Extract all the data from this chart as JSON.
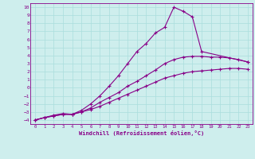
{
  "title": "",
  "xlabel": "Windchill (Refroidissement éolien,°C)",
  "bg_color": "#ceeeed",
  "line_color": "#880088",
  "grid_color": "#aadddd",
  "xlim": [
    -0.5,
    23.5
  ],
  "ylim": [
    -4.5,
    10.5
  ],
  "xticks": [
    0,
    1,
    2,
    3,
    4,
    5,
    6,
    7,
    8,
    9,
    10,
    11,
    12,
    13,
    14,
    15,
    16,
    17,
    18,
    19,
    20,
    21,
    22,
    23
  ],
  "yticks": [
    -4,
    -3,
    -2,
    -1,
    0,
    1,
    2,
    3,
    4,
    5,
    6,
    7,
    8,
    9,
    10
  ],
  "line1_x": [
    0,
    1,
    2,
    3,
    4,
    5,
    6,
    7,
    8,
    9,
    10,
    11,
    12,
    13,
    14,
    15,
    16,
    17,
    18,
    19,
    20,
    21,
    22,
    23
  ],
  "line1_y": [
    -4,
    -3.7,
    -3.5,
    -3.3,
    -3.3,
    -3.0,
    -2.7,
    -2.3,
    -1.8,
    -1.3,
    -0.8,
    -0.3,
    0.2,
    0.7,
    1.2,
    1.5,
    1.8,
    2.0,
    2.1,
    2.2,
    2.3,
    2.4,
    2.4,
    2.3
  ],
  "line2_x": [
    0,
    1,
    2,
    3,
    4,
    5,
    6,
    7,
    8,
    9,
    10,
    11,
    12,
    13,
    14,
    15,
    16,
    17,
    18,
    19,
    20,
    21,
    22,
    23
  ],
  "line2_y": [
    -4,
    -3.7,
    -3.5,
    -3.3,
    -3.3,
    -3.0,
    -2.5,
    -1.8,
    -1.2,
    -0.6,
    0.2,
    0.8,
    1.5,
    2.2,
    3.0,
    3.5,
    3.8,
    3.9,
    3.9,
    3.8,
    3.8,
    3.7,
    3.5,
    3.2
  ],
  "line3_x": [
    0,
    1,
    2,
    3,
    4,
    5,
    6,
    7,
    8,
    9,
    10,
    11,
    12,
    13,
    14,
    15,
    16,
    17,
    18,
    23
  ],
  "line3_y": [
    -4,
    -3.7,
    -3.4,
    -3.2,
    -3.3,
    -2.8,
    -2.0,
    -1.0,
    0.2,
    1.5,
    3.0,
    4.5,
    5.5,
    6.8,
    7.5,
    10.0,
    9.5,
    8.8,
    4.5,
    3.2
  ],
  "marker": "+"
}
